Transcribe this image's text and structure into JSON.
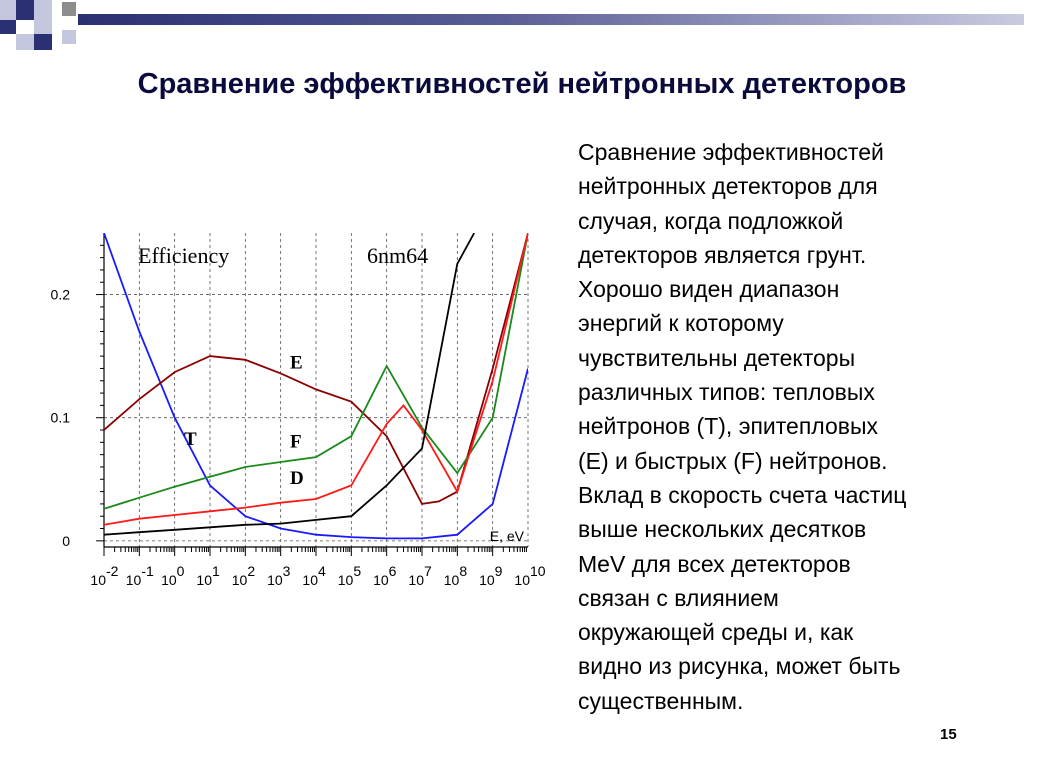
{
  "slide": {
    "title": "Сравнение эффективностей нейтронных детекторов",
    "description": "Сравнение эффективностей нейтронных детекторов для случая, когда подложкой детекторов является грунт. Хорошо виден диапазон энергий к которому чувствительны детекторы различных типов: тепловых нейтронов (T), эпитепловых (E) и быстрых (F) нейтронов. Вклад в скорость счета частиц выше нескольких десятков MeV для всех детекторов связан с влиянием окружающей среды и, как видно из рисунка, может быть существенным.",
    "description_lines": [
      "Сравнение эффективностей",
      "нейтронных детекторов для",
      "случая, когда подложкой",
      "детекторов является грунт.",
      "Хорошо виден диапазон",
      "энергий к которому",
      "чувствительны детекторы",
      "различных типов: тепловых",
      "нейтронов (T), эпитепловых",
      "(E) и быстрых (F) нейтронов.",
      "Вклад в скорость счета частиц",
      "выше нескольких десятков",
      "MeV для всех детекторов",
      "связан с влиянием",
      "окружающей среды и, как",
      "видно из рисунка, может быть",
      "существенным."
    ],
    "page_number": "15"
  },
  "colors": {
    "title": "#0a0a3c",
    "deco_navy": "#2b2f73",
    "deco_light": "#c4c6de",
    "deco_gray": "#8c8c8c",
    "T": "#1a1aff",
    "E": "#8b0000",
    "F": "#1a8a1a",
    "D": "#ff1a1a",
    "black_series": "#000000"
  },
  "chart_data": {
    "type": "line",
    "title": "Efficiency",
    "subtitle": "6nm64",
    "xlabel": "E, eV",
    "x_scale": "log",
    "x_tick_labels": [
      {
        "base": "10",
        "exp": "-2"
      },
      {
        "base": "10",
        "exp": "-1"
      },
      {
        "base": "10",
        "exp": "0"
      },
      {
        "base": "10",
        "exp": "1"
      },
      {
        "base": "10",
        "exp": "2"
      },
      {
        "base": "10",
        "exp": "3"
      },
      {
        "base": "10",
        "exp": "4"
      },
      {
        "base": "10",
        "exp": "5"
      },
      {
        "base": "10",
        "exp": "6"
      },
      {
        "base": "10",
        "exp": "7"
      },
      {
        "base": "10",
        "exp": "8"
      },
      {
        "base": "10",
        "exp": "9"
      },
      {
        "base": "10",
        "exp": "10"
      }
    ],
    "y_tick_labels": [
      "0",
      "0.1",
      "0.2"
    ],
    "y_ticks": [
      0,
      0.1,
      0.2
    ],
    "xlim": [
      -2,
      10
    ],
    "ylim": [
      -0.005,
      0.25
    ],
    "grid": "dashed",
    "series": [
      {
        "key": "T",
        "name": "T",
        "color_key": "T",
        "x": [
          0.01,
          0.1,
          1,
          10,
          100,
          1000,
          10000,
          100000,
          1000000,
          10000000,
          100000000,
          1000000000,
          10000000000
        ],
        "y": [
          0.25,
          0.17,
          0.1,
          0.045,
          0.02,
          0.01,
          0.005,
          0.003,
          0.002,
          0.002,
          0.005,
          0.03,
          0.14
        ]
      },
      {
        "key": "E",
        "name": "E",
        "color_key": "E",
        "x": [
          0.01,
          0.1,
          1,
          10,
          100,
          1000,
          10000,
          100000,
          1000000,
          10000000,
          30000000,
          100000000,
          1000000000,
          10000000000
        ],
        "y": [
          0.09,
          0.115,
          0.137,
          0.15,
          0.147,
          0.136,
          0.123,
          0.113,
          0.085,
          0.03,
          0.032,
          0.04,
          0.14,
          0.25
        ]
      },
      {
        "key": "F",
        "name": "F",
        "color_key": "F",
        "x": [
          0.01,
          0.1,
          1,
          10,
          100,
          1000,
          10000,
          100000,
          1000000,
          10000000,
          100000000,
          1000000000,
          10000000000
        ],
        "y": [
          0.026,
          0.035,
          0.044,
          0.052,
          0.06,
          0.064,
          0.068,
          0.085,
          0.142,
          0.092,
          0.055,
          0.1,
          0.25
        ]
      },
      {
        "key": "D",
        "name": "D",
        "color_key": "D",
        "x": [
          0.01,
          0.1,
          1,
          10,
          100,
          1000,
          10000,
          100000,
          1000000,
          3000000,
          10000000,
          100000000,
          1000000000,
          10000000000
        ],
        "y": [
          0.013,
          0.018,
          0.021,
          0.024,
          0.027,
          0.031,
          0.034,
          0.045,
          0.095,
          0.11,
          0.09,
          0.04,
          0.13,
          0.25
        ]
      },
      {
        "key": "black",
        "name": "",
        "color_key": "black_series",
        "x": [
          0.01,
          0.1,
          1,
          10,
          100,
          1000,
          10000,
          100000,
          1000000,
          10000000,
          100000000,
          300000000
        ],
        "y": [
          0.005,
          0.007,
          0.009,
          0.011,
          0.013,
          0.014,
          0.017,
          0.02,
          0.045,
          0.075,
          0.225,
          0.25
        ]
      }
    ],
    "curve_labels": [
      {
        "text": "E",
        "x": 10000,
        "y": 0.14
      },
      {
        "text": "T",
        "x": 10,
        "y": 0.078
      },
      {
        "text": "F",
        "x": 10000,
        "y": 0.076
      },
      {
        "text": "D",
        "x": 10000,
        "y": 0.046
      }
    ]
  }
}
